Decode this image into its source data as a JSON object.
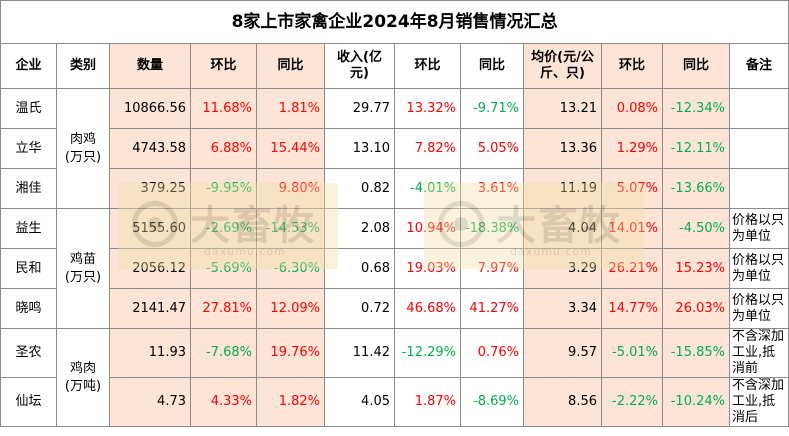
{
  "title": "8家上市家禽企业2024年8月销售情况汇总",
  "headers": {
    "company": "企业",
    "category": "类别",
    "quantity": "数量",
    "qty_mom": "环比",
    "qty_yoy": "同比",
    "revenue": "收入(亿元)",
    "rev_mom": "环比",
    "rev_yoy": "同比",
    "price": "均价(元/公斤、只)",
    "price_mom": "环比",
    "price_yoy": "同比",
    "note": "备注"
  },
  "categories": [
    "肉鸡\n(万只)",
    "鸡苗\n(万只)",
    "鸡肉\n(万吨)"
  ],
  "rows": [
    {
      "company": "温氏",
      "quantity": "10866.56",
      "qty_mom": "11.68%",
      "qty_yoy": "1.81%",
      "revenue": "29.77",
      "rev_mom": "13.32%",
      "rev_yoy": "-9.71%",
      "price": "13.21",
      "price_mom": "0.08%",
      "price_yoy": "-12.34%",
      "note": ""
    },
    {
      "company": "立华",
      "quantity": "4743.58",
      "qty_mom": "6.88%",
      "qty_yoy": "15.44%",
      "revenue": "13.10",
      "rev_mom": "7.82%",
      "rev_yoy": "5.05%",
      "price": "13.36",
      "price_mom": "1.29%",
      "price_yoy": "-12.11%",
      "note": ""
    },
    {
      "company": "湘佳",
      "quantity": "379.25",
      "qty_mom": "-9.95%",
      "qty_yoy": "9.80%",
      "revenue": "0.82",
      "rev_mom": "-4.01%",
      "rev_yoy": "3.61%",
      "price": "11.19",
      "price_mom": "5.07%",
      "price_yoy": "-13.66%",
      "note": ""
    },
    {
      "company": "益生",
      "quantity": "5155.60",
      "qty_mom": "-2.69%",
      "qty_yoy": "-14.53%",
      "revenue": "2.08",
      "rev_mom": "10.94%",
      "rev_yoy": "-18.38%",
      "price": "4.04",
      "price_mom": "14.01%",
      "price_yoy": "-4.50%",
      "note": "价格以只为单位"
    },
    {
      "company": "民和",
      "quantity": "2056.12",
      "qty_mom": "-5.69%",
      "qty_yoy": "-6.30%",
      "revenue": "0.68",
      "rev_mom": "19.03%",
      "rev_yoy": "7.97%",
      "price": "3.29",
      "price_mom": "26.21%",
      "price_yoy": "15.23%",
      "note": "价格以只为单位"
    },
    {
      "company": "晓鸣",
      "quantity": "2141.47",
      "qty_mom": "27.81%",
      "qty_yoy": "12.09%",
      "revenue": "0.72",
      "rev_mom": "46.68%",
      "rev_yoy": "41.27%",
      "price": "3.34",
      "price_mom": "14.77%",
      "price_yoy": "26.03%",
      "note": "价格以只为单位"
    },
    {
      "company": "圣农",
      "quantity": "11.93",
      "qty_mom": "-7.68%",
      "qty_yoy": "19.76%",
      "revenue": "11.42",
      "rev_mom": "-12.29%",
      "rev_yoy": "0.76%",
      "price": "9.57",
      "price_mom": "-5.01%",
      "price_yoy": "-15.85%",
      "note": "不含深加工业,抵消前"
    },
    {
      "company": "仙坛",
      "quantity": "4.73",
      "qty_mom": "4.33%",
      "qty_yoy": "1.82%",
      "revenue": "4.05",
      "rev_mom": "1.87%",
      "rev_yoy": "-8.69%",
      "price": "8.56",
      "price_mom": "-2.22%",
      "price_yoy": "-10.24%",
      "note": "不含深加工业,抵消后"
    }
  ],
  "watermark": {
    "text": "大畜牧",
    "sub": "daxumu.com"
  },
  "colors": {
    "positive": "#ff0000",
    "negative": "#00b050",
    "highlight": "#fce4d6"
  }
}
